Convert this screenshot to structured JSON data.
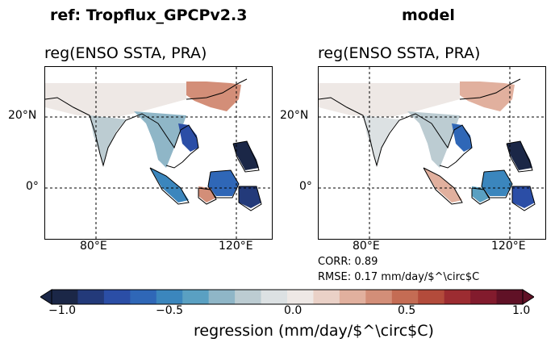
{
  "panels": [
    {
      "id": "ref",
      "super_title": "ref: Tropflux_GPCPv2.3",
      "title": "reg(ENSO SSTA, PRA)",
      "lat_ticks": [
        "20°N",
        "0°"
      ],
      "lon_ticks": [
        "80°E",
        "120°E"
      ]
    },
    {
      "id": "model",
      "super_title": "model",
      "title": "reg(ENSO SSTA, PRA)",
      "lat_ticks": [
        "20°N",
        "0°"
      ],
      "lon_ticks": [
        "80°E",
        "120°E"
      ],
      "stats": {
        "corr": "CORR: 0.89",
        "rmse": "RMSE: 0.17 mm/day/$^\\circ$C"
      }
    }
  ],
  "colorbar": {
    "label": "regression (mm/day/$^\\circ$C)",
    "ticks": [
      "−1.0",
      "−0.5",
      "0.0",
      "0.5",
      "1.0"
    ],
    "range": [
      -1.0,
      1.0
    ],
    "colors": [
      "#1b2747",
      "#233a7a",
      "#2b4ea6",
      "#2f67b7",
      "#3b86bd",
      "#5aa0c2",
      "#8fb6c7",
      "#bcccd2",
      "#dce1e3",
      "#eee8e5",
      "#ead1c7",
      "#e1b09e",
      "#d38e78",
      "#c46c54",
      "#b34b3b",
      "#9c2c31",
      "#821b2d",
      "#601126"
    ]
  },
  "chart_data": [
    {
      "type": "heatmap",
      "panel": "ref",
      "title": "reg(ENSO SSTA, PRA)",
      "x_extent_deg": [
        60,
        140
      ],
      "y_extent_deg": [
        -15,
        35
      ],
      "lat_ticks_deg": [
        20,
        0
      ],
      "lon_ticks_deg": [
        80,
        120
      ],
      "regions": [
        {
          "region": "India north",
          "value": 0.05
        },
        {
          "region": "India south",
          "value": -0.15
        },
        {
          "region": "Bay of Bengal coast",
          "value": -0.3
        },
        {
          "region": "South China",
          "value": 0.4
        },
        {
          "region": "Indochina east",
          "value": -0.75
        },
        {
          "region": "Philippines",
          "value": -1.0
        },
        {
          "region": "Borneo",
          "value": -0.6
        },
        {
          "region": "Sumatra",
          "value": -0.5
        },
        {
          "region": "Java west",
          "value": 0.35
        },
        {
          "region": "New Guinea west",
          "value": -0.85
        }
      ]
    },
    {
      "type": "heatmap",
      "panel": "model",
      "title": "reg(ENSO SSTA, PRA)",
      "x_extent_deg": [
        60,
        140
      ],
      "y_extent_deg": [
        -15,
        35
      ],
      "lat_ticks_deg": [
        20,
        0
      ],
      "lon_ticks_deg": [
        80,
        120
      ],
      "regions": [
        {
          "region": "India north",
          "value": 0.1
        },
        {
          "region": "India south",
          "value": -0.05
        },
        {
          "region": "Bay of Bengal coast",
          "value": -0.2
        },
        {
          "region": "South China",
          "value": 0.3
        },
        {
          "region": "Indochina east",
          "value": -0.6
        },
        {
          "region": "Philippines",
          "value": -1.0
        },
        {
          "region": "Borneo",
          "value": -0.55
        },
        {
          "region": "Sumatra",
          "value": 0.3
        },
        {
          "region": "Java west",
          "value": -0.4
        },
        {
          "region": "New Guinea west",
          "value": -0.7
        }
      ]
    }
  ]
}
